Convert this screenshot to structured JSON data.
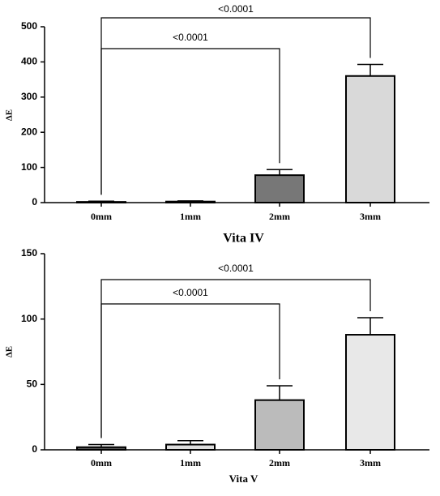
{
  "chart_data": [
    {
      "type": "bar",
      "title": "Vita IV",
      "y_label": "ΔE",
      "categories": [
        "0mm",
        "1mm",
        "2mm",
        "3mm"
      ],
      "values": [
        2,
        3,
        78,
        360
      ],
      "errors": [
        2,
        2,
        16,
        33
      ],
      "colors": [
        "#ffffff",
        "#bbbbbb",
        "#777777",
        "#d9d9d9"
      ],
      "ylim": [
        0,
        500
      ],
      "yticks": [
        0,
        100,
        200,
        300,
        400,
        500
      ],
      "comparisons": [
        {
          "label": "<0.0001",
          "categories": [
            "0mm",
            "2mm"
          ]
        },
        {
          "label": "<0.0001",
          "categories": [
            "0mm",
            "3mm"
          ]
        }
      ]
    },
    {
      "type": "bar",
      "title": "Vita V",
      "y_label": "ΔE",
      "categories": [
        "0mm",
        "1mm",
        "2mm",
        "3mm"
      ],
      "values": [
        2,
        4,
        38,
        88
      ],
      "errors": [
        2,
        3,
        11,
        13
      ],
      "colors": [
        "#555555",
        "#dddddd",
        "#bbbbbb",
        "#e8e8e8"
      ],
      "ylim": [
        0,
        150
      ],
      "yticks": [
        0,
        50,
        100,
        150
      ],
      "comparisons": [
        {
          "label": "<0.0001",
          "categories": [
            "0mm",
            "2mm"
          ]
        },
        {
          "label": "<0.0001",
          "categories": [
            "0mm",
            "3mm"
          ]
        }
      ]
    }
  ]
}
